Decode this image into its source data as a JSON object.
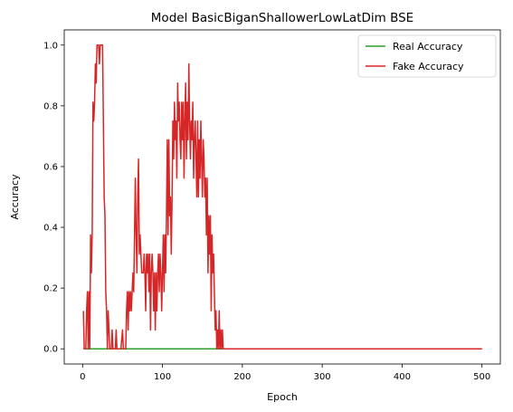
{
  "chart_data": {
    "type": "line",
    "title": "Model BasicBiganShallowerLowLatDim BSE",
    "xlabel": "Epoch",
    "ylabel": "Accuracy",
    "xlim": [
      -23,
      523
    ],
    "ylim": [
      -0.05,
      1.05
    ],
    "x_ticks": [
      0,
      100,
      200,
      300,
      400,
      500
    ],
    "x_tick_labels": [
      "0",
      "100",
      "200",
      "300",
      "400",
      "500"
    ],
    "y_ticks": [
      0.0,
      0.2,
      0.4,
      0.6,
      0.8,
      1.0
    ],
    "y_tick_labels": [
      "0.0",
      "0.2",
      "0.4",
      "0.6",
      "0.8",
      "1.0"
    ],
    "grid": false,
    "legend_position": "top-right",
    "series": [
      {
        "name": "Real Accuracy",
        "color": "#2ca02c",
        "points": [
          [
            1,
            0.0
          ],
          [
            500,
            0.0
          ]
        ]
      },
      {
        "name": "Fake Accuracy",
        "color": "#d62728",
        "points": [
          [
            1,
            0.125
          ],
          [
            2,
            0.0
          ],
          [
            4,
            0.0
          ],
          [
            5,
            0.125
          ],
          [
            6,
            0.188
          ],
          [
            7,
            0.0
          ],
          [
            8,
            0.188
          ],
          [
            9,
            0.0
          ],
          [
            10,
            0.375
          ],
          [
            11,
            0.25
          ],
          [
            12,
            0.375
          ],
          [
            13,
            0.812
          ],
          [
            14,
            0.75
          ],
          [
            15,
            0.812
          ],
          [
            16,
            0.938
          ],
          [
            17,
            0.875
          ],
          [
            18,
            1.0
          ],
          [
            20,
            1.0
          ],
          [
            21,
            0.938
          ],
          [
            22,
            1.0
          ],
          [
            25,
            1.0
          ],
          [
            27,
            0.5
          ],
          [
            28,
            0.438
          ],
          [
            29,
            0.188
          ],
          [
            30,
            0.125
          ],
          [
            31,
            0.0
          ],
          [
            32,
            0.125
          ],
          [
            33,
            0.062
          ],
          [
            34,
            0.0
          ],
          [
            36,
            0.0
          ],
          [
            37,
            0.062
          ],
          [
            38,
            0.0
          ],
          [
            41,
            0.0
          ],
          [
            42,
            0.062
          ],
          [
            43,
            0.0
          ],
          [
            48,
            0.0
          ],
          [
            50,
            0.062
          ],
          [
            51,
            0.0
          ],
          [
            54,
            0.0
          ],
          [
            55,
            0.125
          ],
          [
            56,
            0.188
          ],
          [
            57,
            0.062
          ],
          [
            58,
            0.188
          ],
          [
            59,
            0.125
          ],
          [
            60,
            0.188
          ],
          [
            61,
            0.125
          ],
          [
            62,
            0.188
          ],
          [
            63,
            0.25
          ],
          [
            64,
            0.188
          ],
          [
            65,
            0.375
          ],
          [
            66,
            0.562
          ],
          [
            67,
            0.375
          ],
          [
            68,
            0.25
          ],
          [
            69,
            0.5
          ],
          [
            70,
            0.625
          ],
          [
            71,
            0.312
          ],
          [
            72,
            0.375
          ],
          [
            73,
            0.312
          ],
          [
            74,
            0.25
          ],
          [
            76,
            0.25
          ],
          [
            77,
            0.312
          ],
          [
            78,
            0.25
          ],
          [
            79,
            0.125
          ],
          [
            80,
            0.312
          ],
          [
            81,
            0.25
          ],
          [
            82,
            0.312
          ],
          [
            83,
            0.188
          ],
          [
            84,
            0.312
          ],
          [
            85,
            0.062
          ],
          [
            86,
            0.25
          ],
          [
            87,
            0.312
          ],
          [
            88,
            0.25
          ],
          [
            89,
            0.125
          ],
          [
            90,
            0.25
          ],
          [
            91,
            0.062
          ],
          [
            92,
            0.25
          ],
          [
            93,
            0.125
          ],
          [
            94,
            0.25
          ],
          [
            95,
            0.312
          ],
          [
            96,
            0.188
          ],
          [
            97,
            0.312
          ],
          [
            98,
            0.25
          ],
          [
            99,
            0.125
          ],
          [
            100,
            0.25
          ],
          [
            101,
            0.375
          ],
          [
            102,
            0.188
          ],
          [
            103,
            0.375
          ],
          [
            104,
            0.25
          ],
          [
            105,
            0.438
          ],
          [
            106,
            0.688
          ],
          [
            107,
            0.375
          ],
          [
            108,
            0.688
          ],
          [
            109,
            0.438
          ],
          [
            110,
            0.5
          ],
          [
            111,
            0.312
          ],
          [
            112,
            0.5
          ],
          [
            113,
            0.75
          ],
          [
            114,
            0.625
          ],
          [
            115,
            0.812
          ],
          [
            116,
            0.688
          ],
          [
            117,
            0.75
          ],
          [
            118,
            0.562
          ],
          [
            119,
            0.875
          ],
          [
            120,
            0.75
          ],
          [
            121,
            0.812
          ],
          [
            122,
            0.688
          ],
          [
            123,
            0.625
          ],
          [
            124,
            0.812
          ],
          [
            125,
            0.688
          ],
          [
            126,
            0.812
          ],
          [
            127,
            0.562
          ],
          [
            128,
            0.75
          ],
          [
            129,
            0.875
          ],
          [
            130,
            0.625
          ],
          [
            131,
            0.812
          ],
          [
            132,
            0.688
          ],
          [
            133,
            0.938
          ],
          [
            134,
            0.75
          ],
          [
            135,
            0.625
          ],
          [
            136,
            0.75
          ],
          [
            137,
            0.688
          ],
          [
            138,
            0.812
          ],
          [
            139,
            0.562
          ],
          [
            140,
            0.688
          ],
          [
            141,
            0.75
          ],
          [
            142,
            0.625
          ],
          [
            143,
            0.5
          ],
          [
            144,
            0.75
          ],
          [
            145,
            0.5
          ],
          [
            146,
            0.688
          ],
          [
            147,
            0.562
          ],
          [
            148,
            0.75
          ],
          [
            149,
            0.625
          ],
          [
            150,
            0.5
          ],
          [
            151,
            0.688
          ],
          [
            152,
            0.625
          ],
          [
            153,
            0.5
          ],
          [
            154,
            0.562
          ],
          [
            155,
            0.375
          ],
          [
            156,
            0.562
          ],
          [
            157,
            0.25
          ],
          [
            158,
            0.438
          ],
          [
            159,
            0.312
          ],
          [
            160,
            0.438
          ],
          [
            161,
            0.125
          ],
          [
            162,
            0.375
          ],
          [
            163,
            0.25
          ],
          [
            164,
            0.312
          ],
          [
            165,
            0.188
          ],
          [
            166,
            0.062
          ],
          [
            167,
            0.125
          ],
          [
            168,
            0.0
          ],
          [
            169,
            0.062
          ],
          [
            170,
            0.0
          ],
          [
            171,
            0.125
          ],
          [
            172,
            0.0
          ],
          [
            173,
            0.062
          ],
          [
            174,
            0.0
          ],
          [
            175,
            0.062
          ],
          [
            176,
            0.0
          ],
          [
            500,
            0.0
          ]
        ]
      }
    ]
  }
}
